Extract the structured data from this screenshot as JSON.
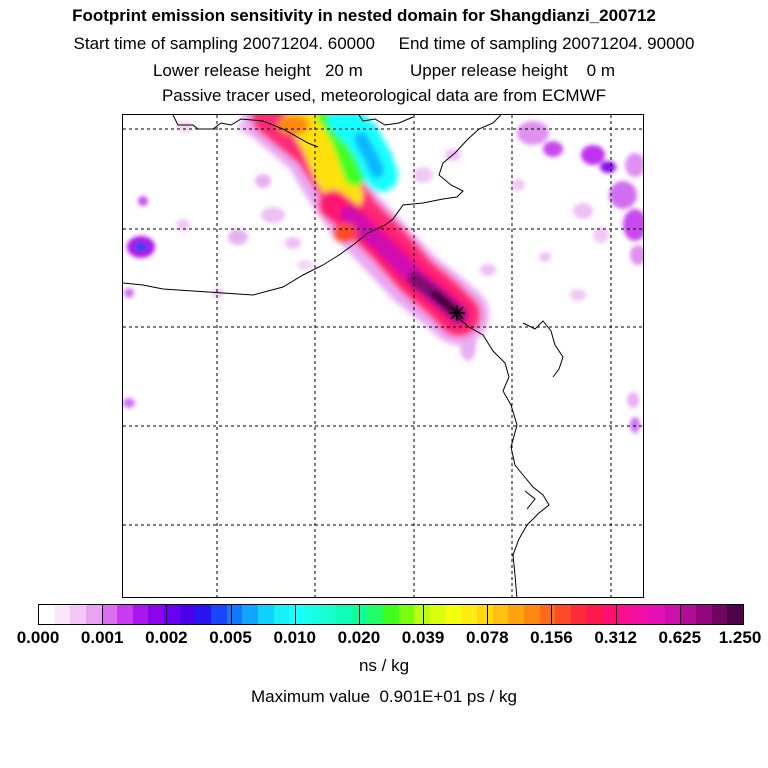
{
  "header": {
    "title": "Footprint emission sensitivity in nested domain for Shangdianzi_200712",
    "line2": "Start time of sampling 20071204. 60000     End time of sampling 20071204. 90000",
    "line3": "Lower release height   20 m          Upper release height    0 m",
    "line4": "Passive tracer used, meteorological data are from ECMWF"
  },
  "legend": {
    "tick_labels": [
      "0.000",
      "0.001",
      "0.002",
      "0.005",
      "0.010",
      "0.020",
      "0.039",
      "0.078",
      "0.156",
      "0.312",
      "0.625",
      "1.250"
    ],
    "unit": "ns / kg",
    "max_value": "Maximum value  0.901E+01 ps / kg",
    "colors": [
      "#ffffff",
      "#fbe6fb",
      "#f3c8f6",
      "#eaa2f2",
      "#dc6ef0",
      "#c83cf0",
      "#a818ee",
      "#8a06ea",
      "#6a00f0",
      "#4a00ea",
      "#2a14f0",
      "#1846f8",
      "#1078ff",
      "#10a6ff",
      "#10d2ff",
      "#18f0f8",
      "#18ffff",
      "#18ffe8",
      "#18ffd2",
      "#10ffb8",
      "#10ff9a",
      "#20ff66",
      "#40ff20",
      "#7aff10",
      "#b8ff10",
      "#dcff10",
      "#f4ff10",
      "#ffec10",
      "#ffd810",
      "#ffc010",
      "#ffa410",
      "#ff8810",
      "#ff6a1a",
      "#ff4a28",
      "#ff2a3a",
      "#ff1a4c",
      "#ff1070",
      "#f81090",
      "#f010a6",
      "#e210b6",
      "#cc10ae",
      "#b00e98",
      "#92087c",
      "#700660",
      "#4e0448"
    ]
  },
  "map": {
    "receptor": "Shangdianzi"
  }
}
